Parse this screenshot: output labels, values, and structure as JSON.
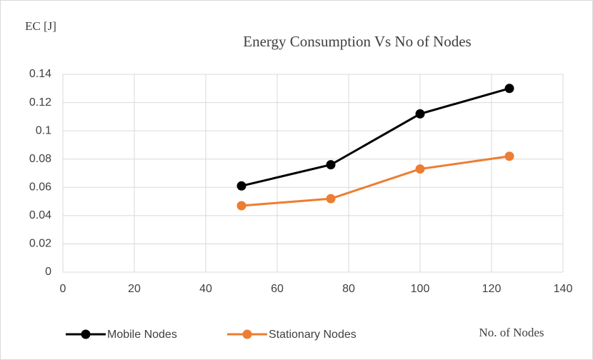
{
  "chart_data": {
    "type": "line",
    "title": "Energy Consumption Vs No of Nodes",
    "y_label": "EC [J]",
    "x_label": "No. of Nodes",
    "x": [
      50,
      75,
      100,
      125
    ],
    "series": [
      {
        "name": "Mobile Nodes",
        "color": "#000000",
        "values": [
          0.061,
          0.076,
          0.112,
          0.13
        ]
      },
      {
        "name": "Stationary Nodes",
        "color": "#ed7d31",
        "values": [
          0.047,
          0.052,
          0.073,
          0.082
        ]
      }
    ],
    "xlim": [
      0,
      140
    ],
    "xticks": [
      0,
      20,
      40,
      60,
      80,
      100,
      120,
      140
    ],
    "ylim": [
      0,
      0.14
    ],
    "yticks": [
      0,
      0.02,
      0.04,
      0.06,
      0.08,
      0.1,
      0.12,
      0.14
    ],
    "grid": true,
    "legend": "bottom-left"
  }
}
